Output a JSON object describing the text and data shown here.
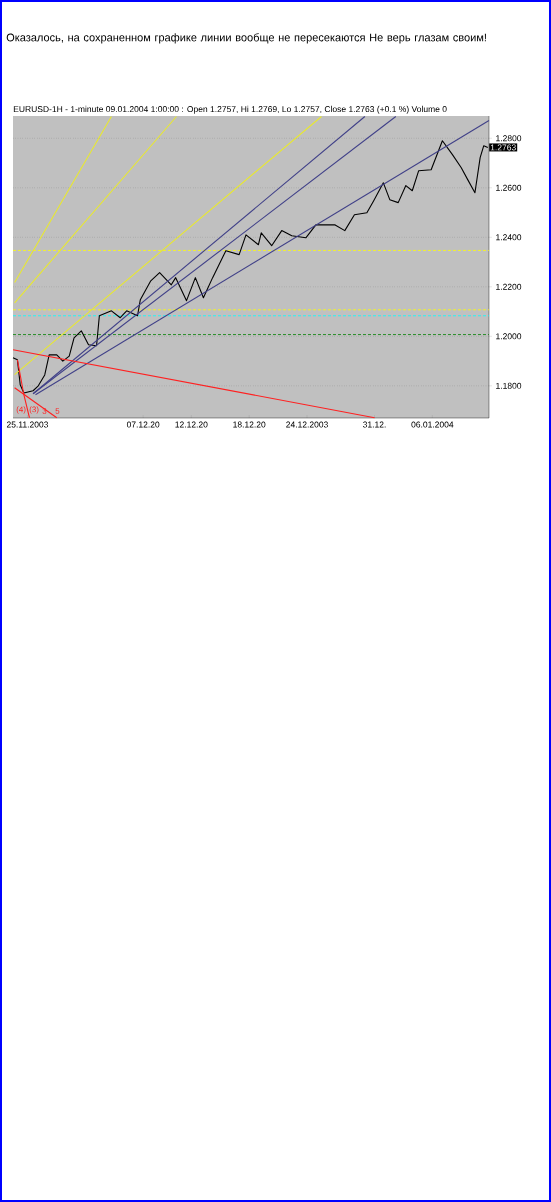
{
  "chart_data": {
    "type": "line",
    "title": "Оказалось, на сохраненном графике линии вообще не пересекаются Не верь глазам своим!",
    "subtitle": "EURUSD-1H - 1-minute 09.01.2004 1:00:00 : Open 1.2757, Hi 1.2769, Lo 1.2757, Close 1.2763 (+0.1 %) Volume 0",
    "xlim": [
      "2003-11-23T12:00",
      "2004-01-11T21:00"
    ],
    "ylim": [
      1.167,
      1.289
    ],
    "xticks": [
      {
        "value": "2003-11-25",
        "label": "25.11.2003"
      },
      {
        "value": "2003-12-07",
        "label": "07.12.20"
      },
      {
        "value": "2003-12-12",
        "label": "12.12.20"
      },
      {
        "value": "2003-12-18",
        "label": "18.12.20"
      },
      {
        "value": "2003-12-24",
        "label": "24.12.2003"
      },
      {
        "value": "2003-12-31",
        "label": "31.12."
      },
      {
        "value": "2004-01-06",
        "label": "06.01.2004"
      }
    ],
    "yticks": [
      {
        "value": 1.18,
        "label": "1.1800"
      },
      {
        "value": 1.2,
        "label": "1.2000"
      },
      {
        "value": 1.22,
        "label": "1.2200"
      },
      {
        "value": 1.24,
        "label": "1.2400"
      },
      {
        "value": 1.26,
        "label": "1.2600"
      },
      {
        "value": 1.28,
        "label": "1.2800"
      }
    ],
    "grid": "y",
    "line_style": "solid",
    "series": [
      {
        "type": "line",
        "color": "#000000",
        "x": [
          "2003-11-23T12:00",
          "2003-11-23T23:00",
          "2003-11-24T06:00",
          "2003-11-24T15:00",
          "2003-11-25T14:00",
          "2003-11-26T03:00",
          "2003-11-26T19:00",
          "2003-11-27T06:00",
          "2003-11-28T01:00",
          "2003-11-28T16:00",
          "2003-11-29T08:00",
          "2003-11-29T20:00",
          "2003-11-30T14:00",
          "2003-12-01T08:00",
          "2003-12-02T04:00",
          "2003-12-02T11:00",
          "2003-12-03T17:00",
          "2003-12-04T15:00",
          "2003-12-05T07:00",
          "2003-12-06T10:00",
          "2003-12-06T17:00",
          "2003-12-07T19:00",
          "2003-12-08T17:00",
          "2003-12-09T22:00",
          "2003-12-10T09:00",
          "2003-12-11T12:00",
          "2003-12-12T10:00",
          "2003-12-13T06:00",
          "2003-12-14T05:00",
          "2003-12-15T14:00",
          "2003-12-16T23:00",
          "2003-12-17T16:00",
          "2003-12-18T23:00",
          "2003-12-19T06:00",
          "2003-12-20T08:00",
          "2003-12-21T09:00",
          "2003-12-22T10:00",
          "2003-12-23T21:00",
          "2003-12-24T22:00",
          "2003-12-26T22:00",
          "2003-12-27T22:00",
          "2003-12-28T22:00",
          "2003-12-30T05:00",
          "2003-12-30T22:00",
          "2003-12-31T22:00",
          "2004-01-01T14:00",
          "2004-01-02T11:00",
          "2004-01-03T06:00",
          "2004-01-03T22:00",
          "2004-01-04T14:00",
          "2004-01-05T21:00",
          "2004-01-07T01:00",
          "2004-01-08T02:00",
          "2004-01-09T00:00",
          "2004-01-09T16:00",
          "2004-01-10T10:00",
          "2004-01-10T23:00",
          "2004-01-11T08:00",
          "2004-01-11T18:00"
        ],
        "values": [
          1.1913,
          1.1905,
          1.1804,
          1.1771,
          1.178,
          1.18,
          1.1844,
          1.1925,
          1.1925,
          1.19,
          1.192,
          1.1994,
          1.2022,
          1.1966,
          1.1962,
          1.2083,
          1.2103,
          1.2075,
          1.2103,
          1.2083,
          1.2148,
          1.2224,
          1.2257,
          1.2208,
          1.2237,
          1.2144,
          1.2237,
          1.2156,
          1.2237,
          1.2346,
          1.233,
          1.241,
          1.237,
          1.2418,
          1.2366,
          1.2427,
          1.2406,
          1.2398,
          1.245,
          1.245,
          1.2427,
          1.2491,
          1.2499,
          1.2548,
          1.262,
          1.2552,
          1.254,
          1.2609,
          1.2588,
          1.2669,
          1.2673,
          1.279,
          1.2734,
          1.2681,
          1.2633,
          1.258,
          1.2722,
          1.277,
          1.2763
        ]
      },
      {
        "type": "line",
        "color": "#e8e830",
        "x": [
          "2003-11-23T16:00",
          "2003-12-03T17:00"
        ],
        "values": [
          1.2217,
          1.2888
        ]
      },
      {
        "type": "line",
        "color": "#e8e830",
        "x": [
          "2003-11-23T16:00",
          "2003-12-10T11:00"
        ],
        "values": [
          1.2135,
          1.2888
        ]
      },
      {
        "type": "line",
        "color": "#e8e830",
        "x": [
          "2003-11-23T16:00",
          "2003-12-25T12:00"
        ],
        "values": [
          1.1845,
          1.2888
        ]
      },
      {
        "type": "line",
        "color": "#404088",
        "x": [
          "2003-11-25T20:00",
          "2004-01-11T21:00"
        ],
        "values": [
          1.1764,
          1.2872
        ]
      },
      {
        "type": "line",
        "color": "#404088",
        "x": [
          "2003-11-25T14:00",
          "2004-01-02T05:00"
        ],
        "values": [
          1.1768,
          1.2888
        ]
      },
      {
        "type": "line",
        "color": "#404088",
        "x": [
          "2003-11-25T14:00",
          "2003-12-30T00:00"
        ],
        "values": [
          1.1768,
          1.2888
        ]
      },
      {
        "type": "line",
        "color": "#ff2020",
        "x": [
          "2003-11-23T12:00",
          "2003-12-31T00:00"
        ],
        "values": [
          1.1946,
          1.1671
        ]
      },
      {
        "type": "line",
        "color": "#ff2020",
        "x": [
          "2003-11-23T16:00",
          "2003-11-28T01:00"
        ],
        "values": [
          1.1792,
          1.1671
        ]
      },
      {
        "type": "line",
        "color": "#ff2020",
        "x": [
          "2003-11-23T23:00",
          "2003-11-24T15:00",
          "2003-11-25T05:00"
        ],
        "values": [
          1.1905,
          1.1764,
          1.1671
        ]
      }
    ],
    "ref_lines": [
      {
        "axis": "y",
        "value": 1.2347,
        "color": "#ffff00",
        "line_style": "dashed"
      },
      {
        "axis": "y",
        "value": 1.2107,
        "color": "#ffff00",
        "line_style": "dashed"
      },
      {
        "axis": "y",
        "value": 1.2083,
        "color": "#00ffff",
        "line_style": "dashed"
      },
      {
        "axis": "y",
        "value": 1.2007,
        "color": "#008000",
        "line_style": "dashed"
      }
    ],
    "annotations": [
      "(4)",
      "(3)",
      "3",
      "5",
      {
        "text": "1.2763",
        "x": "2004-01-11T21:00",
        "y": 1.2763
      }
    ]
  }
}
